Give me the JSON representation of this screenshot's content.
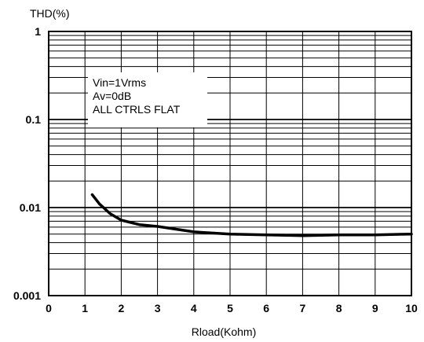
{
  "chart_data": {
    "type": "line",
    "title": "",
    "ylabel": "THD(%)",
    "xlabel": "Rload(Kohm)",
    "x_scale": "linear",
    "y_scale": "log",
    "xlim": [
      0,
      10
    ],
    "ylim": [
      0.001,
      1
    ],
    "x_ticks": [
      "0",
      "1",
      "2",
      "3",
      "4",
      "5",
      "6",
      "7",
      "8",
      "9",
      "10"
    ],
    "y_ticks": [
      "0.001",
      "0.01",
      "0.1",
      "1"
    ],
    "grid": true,
    "annotation": [
      "Vin=1Vrms",
      "Av=0dB",
      "ALL CTRLS FLAT"
    ],
    "series": [
      {
        "color": "#000000",
        "x": [
          1.2,
          1.4,
          1.7,
          2.0,
          2.5,
          3.0,
          4.0,
          5.0,
          6.0,
          7.0,
          8.0,
          9.0,
          10.0
        ],
        "y": [
          0.014,
          0.011,
          0.0085,
          0.0072,
          0.0064,
          0.0061,
          0.0053,
          0.005,
          0.0049,
          0.0048,
          0.0049,
          0.0049,
          0.005
        ]
      }
    ]
  }
}
